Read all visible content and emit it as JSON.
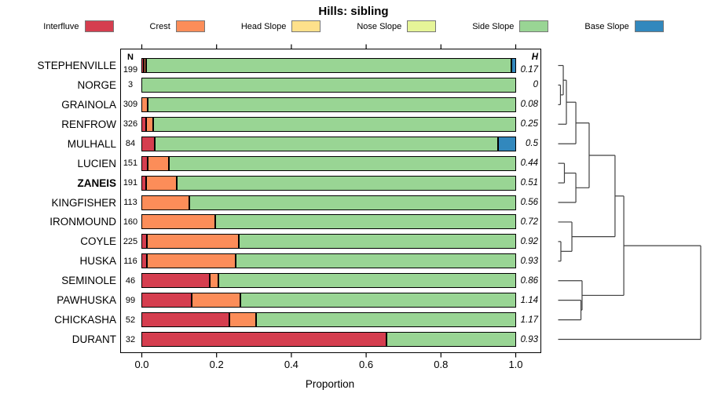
{
  "title": "Hills: sibling",
  "legend": [
    {
      "label": "Interfluve",
      "color": "#d53e4f"
    },
    {
      "label": "Crest",
      "color": "#fc8d59"
    },
    {
      "label": "Head Slope",
      "color": "#fee08b"
    },
    {
      "label": "Nose Slope",
      "color": "#e6f598"
    },
    {
      "label": "Side Slope",
      "color": "#99d594"
    },
    {
      "label": "Base Slope",
      "color": "#3288bd"
    }
  ],
  "columns": {
    "n_header": "N",
    "h_header": "H"
  },
  "xlabel": "Proportion",
  "chart_data": {
    "type": "bar",
    "orientation": "horizontal",
    "stacked": true,
    "title": "Hills: sibling",
    "xlabel": "Proportion",
    "xlim": [
      0,
      1
    ],
    "x_ticks": [
      {
        "label": "0.0",
        "value": 0.0
      },
      {
        "label": "0.2",
        "value": 0.2
      },
      {
        "label": "0.4",
        "value": 0.4
      },
      {
        "label": "0.6",
        "value": 0.6
      },
      {
        "label": "0.8",
        "value": 0.8
      },
      {
        "label": "1.0",
        "value": 1.0
      }
    ],
    "legend_position": "top",
    "rows": [
      {
        "name": "STEPHENVILLE",
        "n": "199",
        "h": "0.17",
        "bold": false,
        "segments": [
          {
            "name": "Interfluve",
            "value": 0.006
          },
          {
            "name": "Crest",
            "value": 0.006
          },
          {
            "name": "Side Slope",
            "value": 0.976
          },
          {
            "name": "Base Slope",
            "value": 0.012
          }
        ]
      },
      {
        "name": "NORGE",
        "n": "3",
        "h": "0",
        "bold": false,
        "segments": [
          {
            "name": "Side Slope",
            "value": 1.0
          }
        ]
      },
      {
        "name": "GRAINOLA",
        "n": "309",
        "h": "0.08",
        "bold": false,
        "segments": [
          {
            "name": "Crest",
            "value": 0.016
          },
          {
            "name": "Side Slope",
            "value": 0.984
          }
        ]
      },
      {
        "name": "RENFROW",
        "n": "326",
        "h": "0.25",
        "bold": false,
        "segments": [
          {
            "name": "Interfluve",
            "value": 0.013
          },
          {
            "name": "Crest",
            "value": 0.019
          },
          {
            "name": "Side Slope",
            "value": 0.968
          }
        ]
      },
      {
        "name": "MULHALL",
        "n": "84",
        "h": "0.5",
        "bold": false,
        "segments": [
          {
            "name": "Interfluve",
            "value": 0.036
          },
          {
            "name": "Side Slope",
            "value": 0.916
          },
          {
            "name": "Base Slope",
            "value": 0.048
          }
        ]
      },
      {
        "name": "LUCIEN",
        "n": "151",
        "h": "0.44",
        "bold": false,
        "segments": [
          {
            "name": "Interfluve",
            "value": 0.016
          },
          {
            "name": "Crest",
            "value": 0.057
          },
          {
            "name": "Side Slope",
            "value": 0.927
          }
        ]
      },
      {
        "name": "ZANEIS",
        "n": "191",
        "h": "0.51",
        "bold": true,
        "segments": [
          {
            "name": "Interfluve",
            "value": 0.012
          },
          {
            "name": "Crest",
            "value": 0.082
          },
          {
            "name": "Side Slope",
            "value": 0.906
          }
        ]
      },
      {
        "name": "KINGFISHER",
        "n": "113",
        "h": "0.56",
        "bold": false,
        "segments": [
          {
            "name": "Crest",
            "value": 0.128
          },
          {
            "name": "Side Slope",
            "value": 0.872
          }
        ]
      },
      {
        "name": "IRONMOUND",
        "n": "160",
        "h": "0.72",
        "bold": false,
        "segments": [
          {
            "name": "Crest",
            "value": 0.198
          },
          {
            "name": "Side Slope",
            "value": 0.802
          }
        ]
      },
      {
        "name": "COYLE",
        "n": "225",
        "h": "0.92",
        "bold": false,
        "segments": [
          {
            "name": "Interfluve",
            "value": 0.015
          },
          {
            "name": "Crest",
            "value": 0.245
          },
          {
            "name": "Side Slope",
            "value": 0.74
          }
        ]
      },
      {
        "name": "HUSKA",
        "n": "116",
        "h": "0.93",
        "bold": false,
        "segments": [
          {
            "name": "Interfluve",
            "value": 0.014
          },
          {
            "name": "Crest",
            "value": 0.238
          },
          {
            "name": "Side Slope",
            "value": 0.748
          }
        ]
      },
      {
        "name": "SEMINOLE",
        "n": "46",
        "h": "0.86",
        "bold": false,
        "segments": [
          {
            "name": "Interfluve",
            "value": 0.183
          },
          {
            "name": "Crest",
            "value": 0.022
          },
          {
            "name": "Side Slope",
            "value": 0.795
          }
        ]
      },
      {
        "name": "PAWHUSKA",
        "n": "99",
        "h": "1.14",
        "bold": false,
        "segments": [
          {
            "name": "Interfluve",
            "value": 0.135
          },
          {
            "name": "Crest",
            "value": 0.129
          },
          {
            "name": "Side Slope",
            "value": 0.736
          }
        ]
      },
      {
        "name": "CHICKASHA",
        "n": "52",
        "h": "1.17",
        "bold": false,
        "segments": [
          {
            "name": "Interfluve",
            "value": 0.235
          },
          {
            "name": "Crest",
            "value": 0.072
          },
          {
            "name": "Side Slope",
            "value": 0.693
          }
        ]
      },
      {
        "name": "DURANT",
        "n": "32",
        "h": "0.93",
        "bold": false,
        "segments": [
          {
            "name": "Interfluve",
            "value": 0.655
          },
          {
            "name": "Side Slope",
            "value": 0.345
          }
        ]
      }
    ],
    "dendrogram": {
      "height": 1.0,
      "children": [
        {
          "height": 0.456,
          "children": [
            {
              "height": 0.394,
              "children": [
                {
                  "height": 0.211,
                  "children": [
                    {
                      "height": 0.117,
                      "children": [
                        {
                          "height": 0.05,
                          "children": [
                            {
                              "height": 0.028,
                              "children": [
                                {
                                  "leaf": "STEPHENVILLE"
                                },
                                {
                                  "height": 0.008,
                                  "children": [
                                    {
                                      "leaf": "NORGE"
                                    },
                                    {
                                      "leaf": "GRAINOLA"
                                    }
                                  ]
                                }
                              ]
                            },
                            {
                              "leaf": "RENFROW"
                            }
                          ]
                        },
                        {
                          "leaf": "MULHALL"
                        }
                      ]
                    },
                    {
                      "height": 0.117,
                      "children": [
                        {
                          "height": 0.036,
                          "children": [
                            {
                              "leaf": "LUCIEN"
                            },
                            {
                              "leaf": "ZANEIS"
                            }
                          ]
                        },
                        {
                          "leaf": "KINGFISHER"
                        }
                      ]
                    }
                  ]
                },
                {
                  "height": 0.089,
                  "children": [
                    {
                      "leaf": "IRONMOUND"
                    },
                    {
                      "height": 0.011,
                      "children": [
                        {
                          "leaf": "COYLE"
                        },
                        {
                          "leaf": "HUSKA"
                        }
                      ]
                    }
                  ]
                }
              ]
            },
            {
              "height": 0.161,
              "children": [
                {
                  "leaf": "SEMINOLE"
                },
                {
                  "height": 0.153,
                  "children": [
                    {
                      "leaf": "PAWHUSKA"
                    },
                    {
                      "leaf": "CHICKASHA"
                    }
                  ]
                }
              ]
            }
          ]
        },
        {
          "leaf": "DURANT"
        }
      ]
    }
  }
}
